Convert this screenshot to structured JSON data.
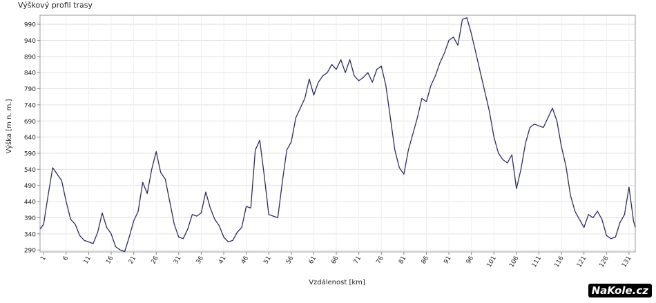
{
  "chart_data": {
    "type": "line",
    "title": "Výškový profil trasy",
    "x_label": "Vzdálenost [km]",
    "y_label": "Výška [m n. m.]",
    "x": [
      0.2,
      1,
      2,
      3,
      4,
      5,
      6,
      7,
      8,
      9,
      10,
      11,
      12,
      13,
      14,
      15,
      16,
      17,
      18,
      19,
      20,
      21,
      22,
      23,
      24,
      25,
      26,
      27,
      28,
      29,
      30,
      31,
      32,
      33,
      34,
      35,
      36,
      37,
      38,
      39,
      40,
      41,
      42,
      43,
      44,
      45,
      46,
      47,
      48,
      49,
      50,
      51,
      52,
      53,
      54,
      55,
      56,
      57,
      58,
      59,
      60,
      61,
      62,
      63,
      64,
      65,
      66,
      67,
      68,
      69,
      70,
      71,
      72,
      73,
      74,
      75,
      76,
      77,
      78,
      79,
      80,
      81,
      82,
      83,
      84,
      85,
      86,
      87,
      88,
      89,
      90,
      91,
      92,
      93,
      94,
      95,
      96,
      97,
      98,
      99,
      100,
      101,
      102,
      103,
      104,
      105,
      106,
      107,
      108,
      109,
      110,
      111,
      112,
      113,
      114,
      115,
      116,
      117,
      118,
      119,
      120,
      121,
      122,
      123,
      124,
      125,
      126,
      127,
      128,
      129,
      130,
      131,
      132,
      132.4
    ],
    "series": [
      {
        "name": "Výška",
        "color": "#2b2b6b",
        "values": [
          355,
          370,
          460,
          545,
          525,
          505,
          440,
          385,
          370,
          335,
          320,
          315,
          310,
          345,
          405,
          360,
          340,
          300,
          290,
          285,
          330,
          380,
          410,
          500,
          465,
          540,
          595,
          530,
          510,
          440,
          370,
          330,
          325,
          355,
          400,
          395,
          405,
          470,
          420,
          385,
          365,
          330,
          315,
          320,
          345,
          360,
          425,
          420,
          600,
          630,
          520,
          400,
          395,
          390,
          500,
          600,
          625,
          700,
          730,
          760,
          820,
          770,
          810,
          830,
          840,
          865,
          850,
          880,
          840,
          880,
          830,
          815,
          825,
          840,
          810,
          850,
          860,
          800,
          700,
          600,
          545,
          525,
          600,
          650,
          700,
          760,
          750,
          800,
          830,
          870,
          900,
          940,
          950,
          925,
          1005,
          1010,
          960,
          900,
          840,
          780,
          720,
          640,
          590,
          570,
          560,
          585,
          480,
          540,
          620,
          670,
          680,
          675,
          670,
          700,
          730,
          690,
          610,
          550,
          460,
          410,
          385,
          360,
          400,
          390,
          410,
          385,
          335,
          325,
          330,
          375,
          400,
          485,
          380,
          360
        ]
      }
    ],
    "xlim": [
      0.2,
      132.4
    ],
    "ylim": [
      284,
      1018
    ],
    "xticks": [
      1,
      6,
      11,
      16,
      21,
      26,
      31,
      36,
      41,
      46,
      51,
      56,
      61,
      66,
      71,
      76,
      81,
      86,
      91,
      96,
      101,
      106,
      111,
      116,
      121,
      126,
      131
    ],
    "yticks": [
      290,
      340,
      390,
      440,
      490,
      540,
      590,
      640,
      690,
      740,
      790,
      840,
      890,
      940,
      990
    ],
    "grid": true,
    "watermark": "NaKole.cz"
  }
}
